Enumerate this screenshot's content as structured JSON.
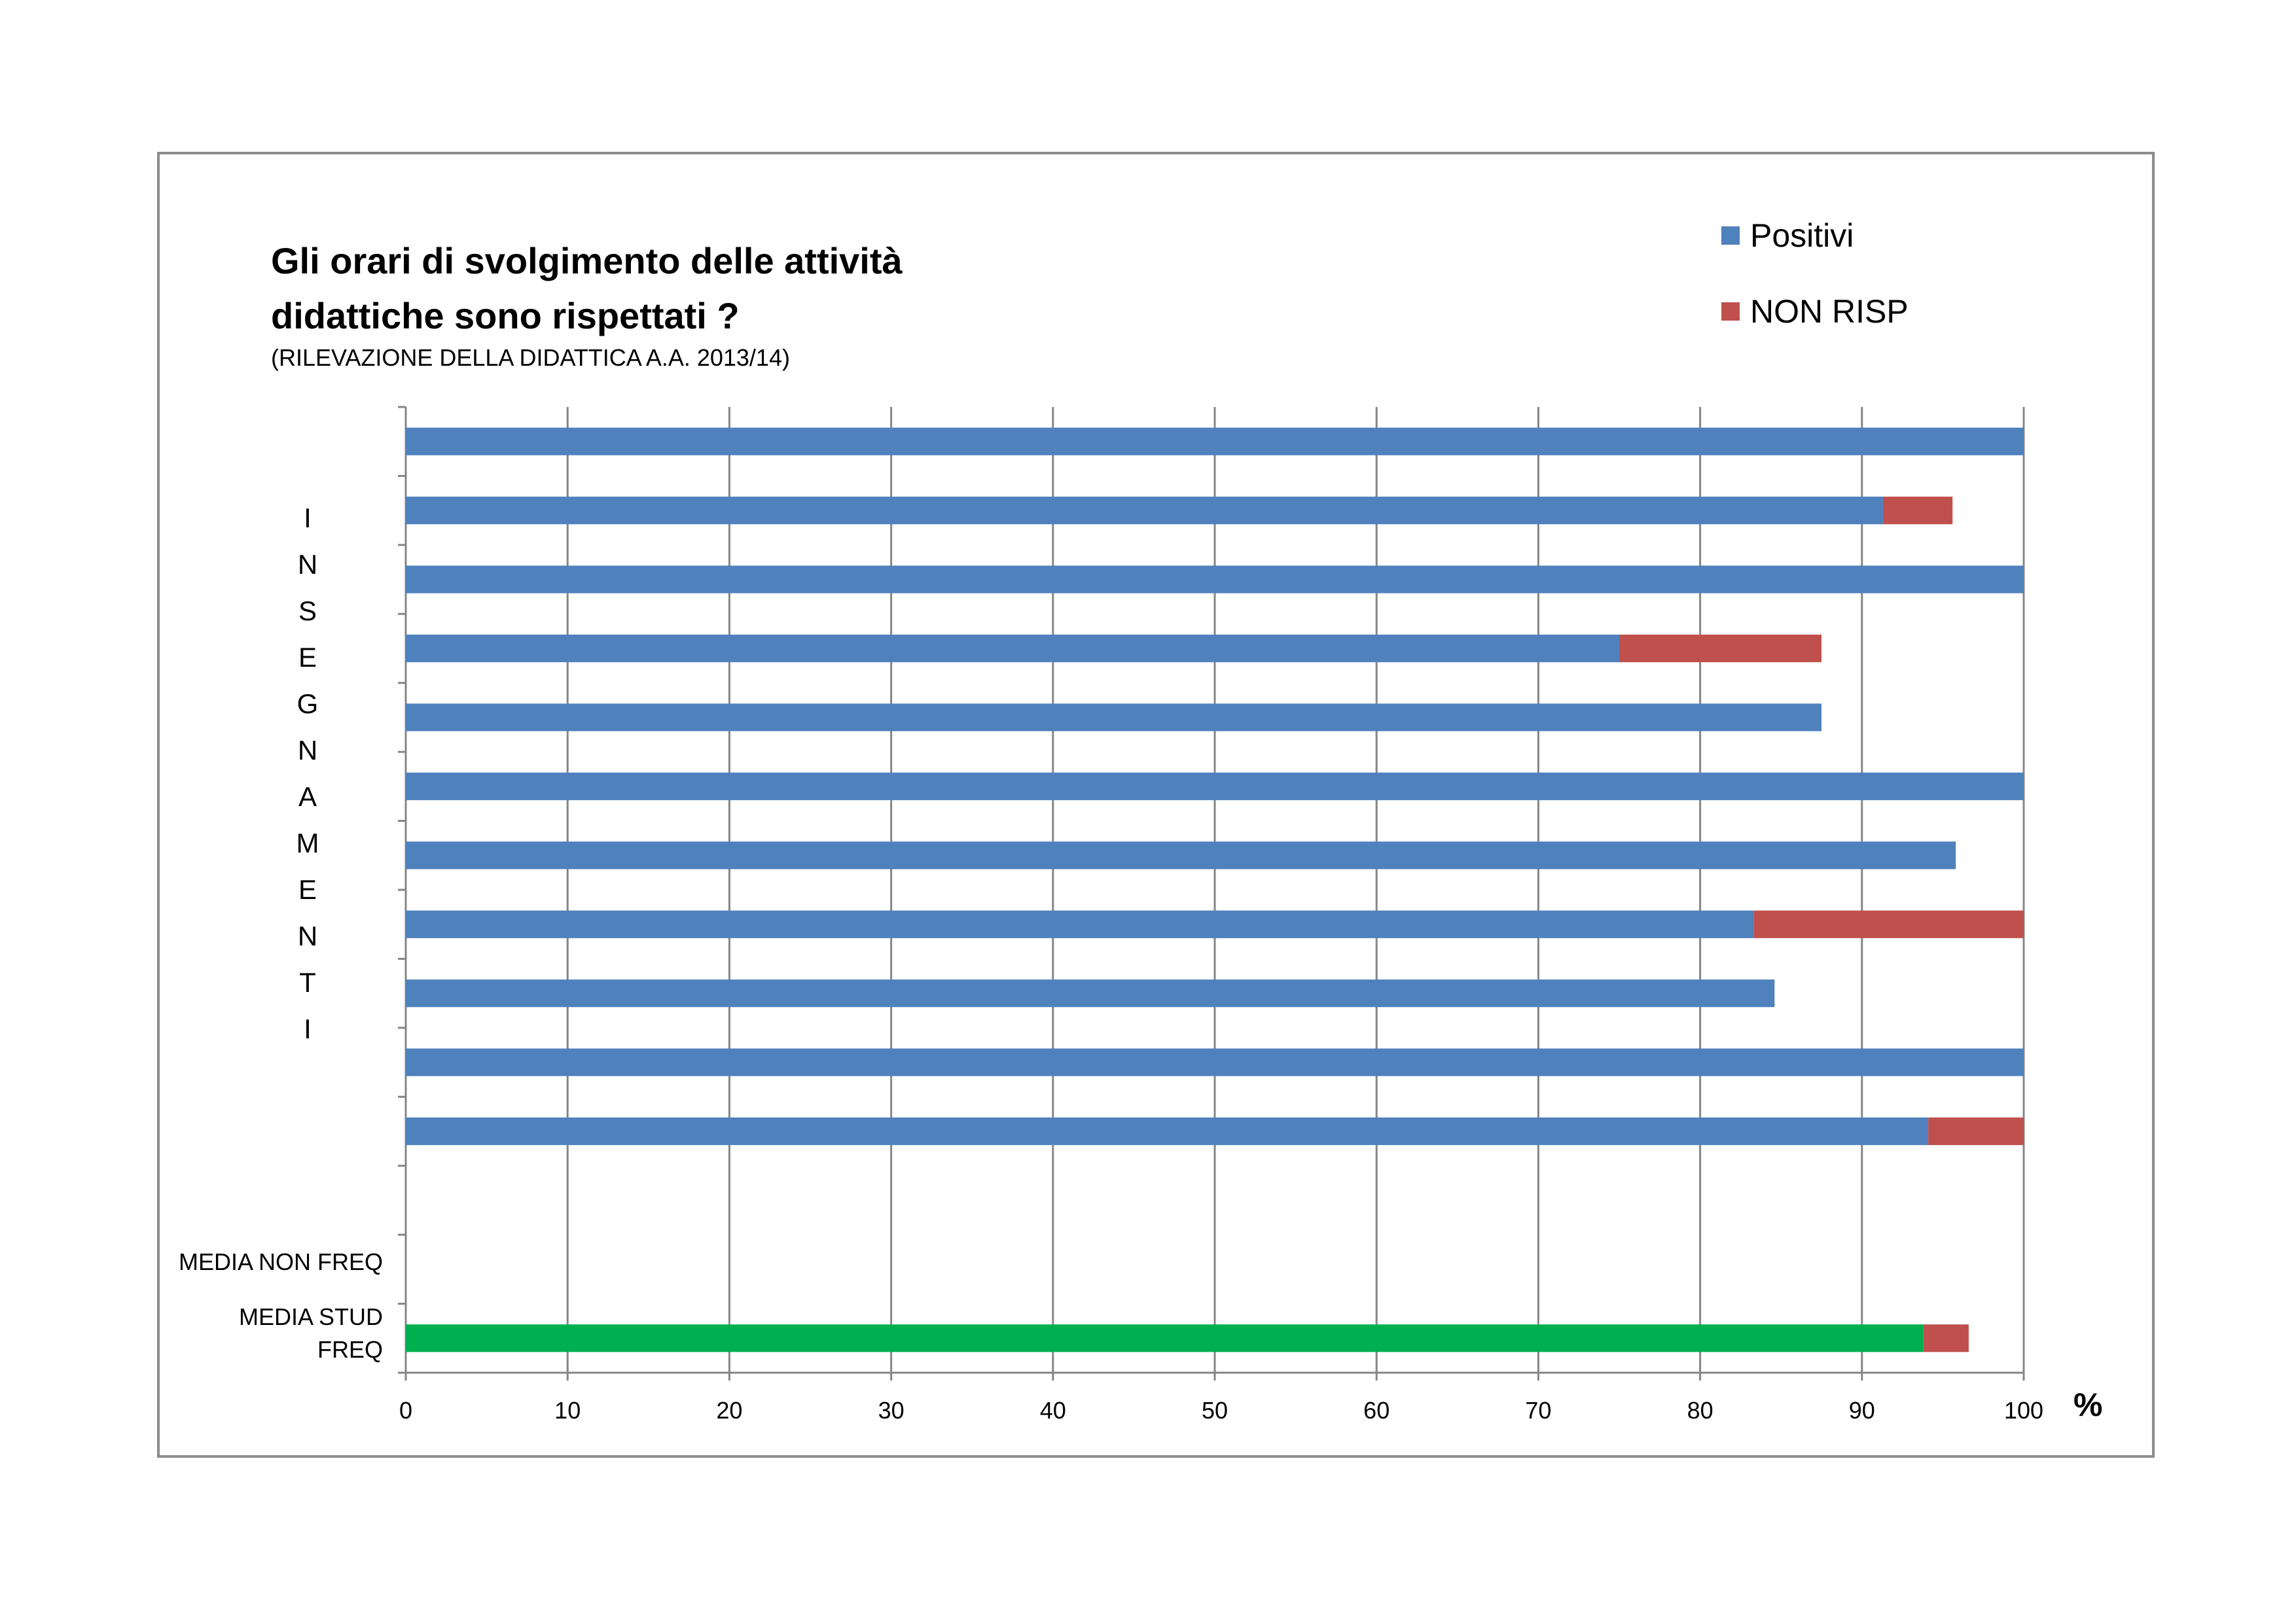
{
  "title_line1": "Gli orari di svolgimento delle attività",
  "title_line2": "didattiche sono rispettati ?",
  "subtitle": "(RILEVAZIONE DELLA DIDATTICA A.A. 2013/14)",
  "legend": {
    "positivi": "Positivi",
    "non_risp": "NON RISP"
  },
  "vertical_label_letters": [
    "I",
    "N",
    "S",
    "E",
    "G",
    "N",
    "A",
    "M",
    "E",
    "N",
    "T",
    "I"
  ],
  "category_labels": {
    "media_non_freq": "MEDIA NON FREQ",
    "media_stud_freq_line1": "MEDIA STUD",
    "media_stud_freq_line2": "FREQ"
  },
  "unit_label": "%",
  "colors": {
    "positivi": "#4f81bd",
    "non_risp": "#c0504d",
    "media": "#00b050",
    "grid": "#868686"
  },
  "chart_data": {
    "type": "bar",
    "orientation": "horizontal",
    "stacked": true,
    "xlim": [
      0,
      100
    ],
    "x_ticks": [
      0,
      10,
      20,
      30,
      40,
      50,
      60,
      70,
      80,
      90,
      100
    ],
    "grid": true,
    "legend_position": "top-right",
    "categories": [
      "",
      "",
      "",
      "",
      "",
      "",
      "",
      "",
      "",
      "",
      "",
      "",
      "MEDIA NON FREQ",
      "MEDIA STUD FREQ"
    ],
    "series": [
      {
        "name": "Positivi",
        "values": [
          100,
          91.3,
          100,
          75,
          87.5,
          100,
          95.8,
          83.3,
          84.6,
          100,
          94.1,
          0,
          0,
          93.8
        ]
      },
      {
        "name": "NON RISP",
        "values": [
          0,
          4.3,
          0,
          12.5,
          0,
          0,
          0,
          16.7,
          0,
          0,
          5.9,
          0,
          0,
          2.8
        ]
      }
    ]
  }
}
